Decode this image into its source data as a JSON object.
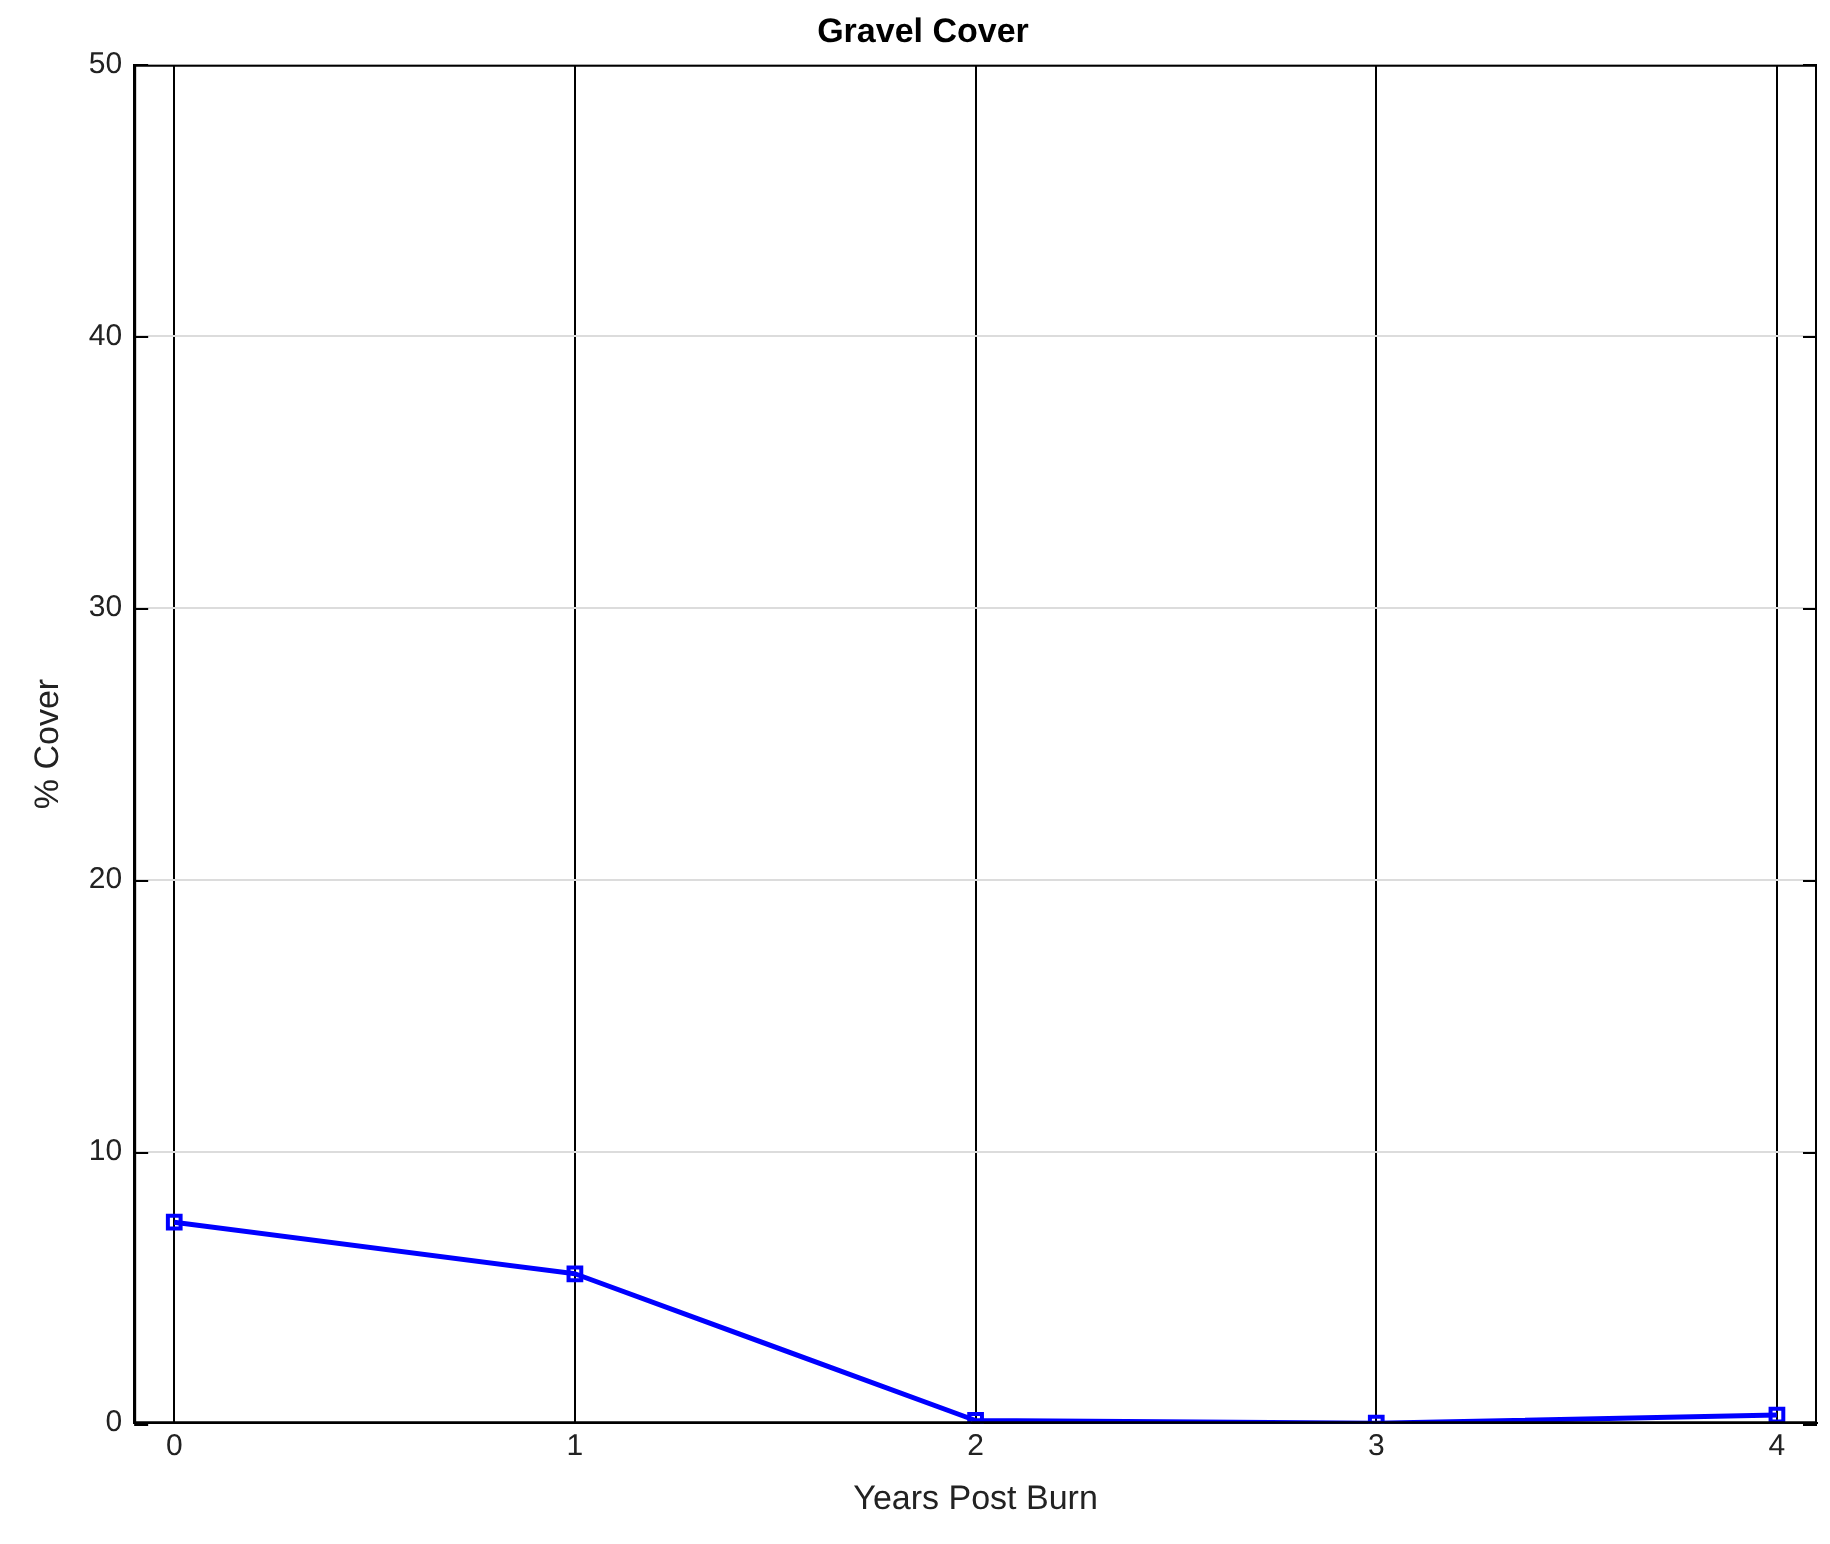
{
  "chart_data": {
    "type": "line",
    "title": "Gravel Cover",
    "xlabel": "Years Post Burn",
    "ylabel": "% Cover",
    "x": [
      0,
      1,
      2,
      3,
      4
    ],
    "series": [
      {
        "color": "#0000ff",
        "values": [
          7.4,
          5.5,
          0.1,
          0,
          0.3
        ]
      }
    ],
    "xlim": [
      -0.1,
      4.1
    ],
    "xticks": [
      0,
      1,
      2,
      3,
      4
    ],
    "ylim": [
      0,
      50
    ],
    "yticks": [
      0,
      10,
      20,
      30,
      40,
      50
    ],
    "grid": true,
    "legend": false,
    "marker": "square",
    "line_style": "solid"
  }
}
